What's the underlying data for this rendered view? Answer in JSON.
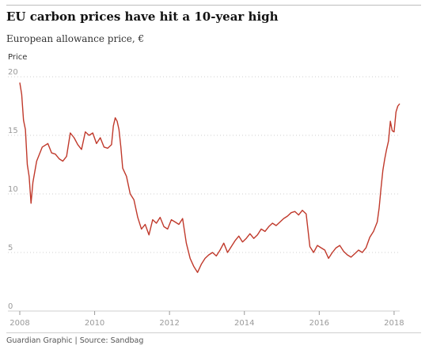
{
  "header": {
    "title": "EU carbon prices have hit a 10-year high",
    "subtitle": "European allowance price, €"
  },
  "footer": {
    "credit": "Guardian Graphic | Source: Sandbag"
  },
  "colors": {
    "line": "#c0392b",
    "grid": "#cfcfcf",
    "axis": "#999999"
  },
  "chart_data": {
    "type": "line",
    "ylabel": "Price",
    "xlim": [
      2008,
      2018.15
    ],
    "ylim": [
      0,
      20
    ],
    "xticks": [
      2008,
      2010,
      2012,
      2014,
      2016,
      2018
    ],
    "yticks": [
      0,
      5,
      10,
      15,
      20
    ],
    "grid": "horizontal-dotted",
    "series": [
      {
        "x": [
          2008.0,
          2008.05,
          2008.1,
          2008.15,
          2008.2,
          2008.25,
          2008.3,
          2008.35,
          2008.45,
          2008.6,
          2008.75,
          2008.85,
          2008.95,
          2009.05,
          2009.15,
          2009.25,
          2009.35,
          2009.45,
          2009.55,
          2009.65,
          2009.75,
          2009.85,
          2009.95,
          2010.05,
          2010.15,
          2010.25,
          2010.35,
          2010.45,
          2010.5,
          2010.55,
          2010.6,
          2010.65,
          2010.7,
          2010.75,
          2010.85,
          2010.95,
          2011.05,
          2011.15,
          2011.25,
          2011.35,
          2011.45,
          2011.55,
          2011.65,
          2011.75,
          2011.85,
          2011.95,
          2012.05,
          2012.15,
          2012.25,
          2012.35,
          2012.45,
          2012.55,
          2012.65,
          2012.75,
          2012.85,
          2012.95,
          2013.05,
          2013.15,
          2013.25,
          2013.35,
          2013.45,
          2013.55,
          2013.65,
          2013.75,
          2013.85,
          2013.95,
          2014.05,
          2014.15,
          2014.25,
          2014.35,
          2014.45,
          2014.55,
          2014.65,
          2014.75,
          2014.85,
          2014.95,
          2015.05,
          2015.15,
          2015.25,
          2015.35,
          2015.45,
          2015.55,
          2015.65,
          2015.75,
          2015.85,
          2015.95,
          2016.05,
          2016.15,
          2016.25,
          2016.35,
          2016.45,
          2016.55,
          2016.65,
          2016.75,
          2016.85,
          2016.95,
          2017.05,
          2017.15,
          2017.25,
          2017.35,
          2017.45,
          2017.55,
          2017.6,
          2017.65,
          2017.7,
          2017.75,
          2017.8,
          2017.85,
          2017.9,
          2017.95,
          2018.0,
          2018.05,
          2018.1,
          2018.15
        ],
        "y": [
          19.5,
          18.5,
          16.3,
          15.5,
          12.5,
          11.5,
          9.2,
          11.0,
          12.8,
          14.0,
          14.3,
          13.5,
          13.4,
          13.0,
          12.8,
          13.2,
          15.2,
          14.8,
          14.2,
          13.8,
          15.3,
          15.0,
          15.2,
          14.3,
          14.8,
          14.0,
          13.9,
          14.2,
          15.8,
          16.5,
          16.2,
          15.5,
          14.0,
          12.2,
          11.5,
          10.0,
          9.5,
          8.0,
          7.0,
          7.4,
          6.5,
          7.8,
          7.5,
          8.0,
          7.2,
          7.0,
          7.8,
          7.6,
          7.4,
          7.9,
          5.8,
          4.5,
          3.8,
          3.3,
          4.0,
          4.5,
          4.8,
          5.0,
          4.7,
          5.2,
          5.8,
          5.0,
          5.5,
          6.0,
          6.4,
          5.9,
          6.2,
          6.6,
          6.2,
          6.5,
          7.0,
          6.8,
          7.2,
          7.5,
          7.3,
          7.6,
          7.9,
          8.1,
          8.4,
          8.5,
          8.2,
          8.6,
          8.3,
          5.5,
          5.0,
          5.6,
          5.4,
          5.2,
          4.5,
          5.0,
          5.4,
          5.6,
          5.1,
          4.8,
          4.6,
          4.9,
          5.2,
          5.0,
          5.4,
          6.3,
          6.8,
          7.6,
          8.8,
          10.5,
          12.0,
          13.0,
          13.8,
          14.5,
          16.2,
          15.4,
          15.3,
          17.0,
          17.5,
          17.7
        ]
      }
    ]
  }
}
